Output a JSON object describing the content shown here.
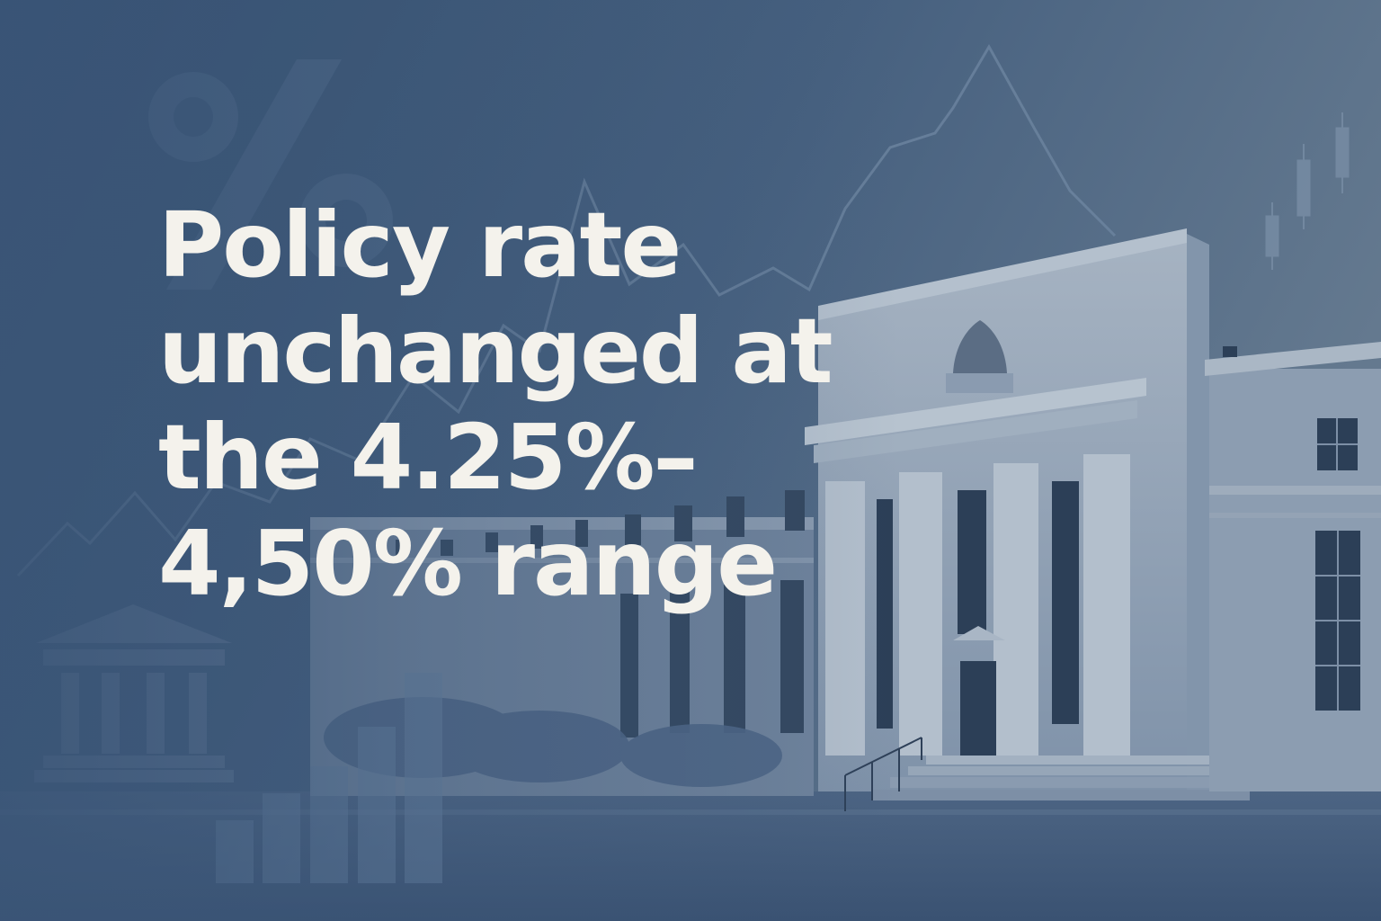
{
  "headline": {
    "lines": [
      "Policy rate",
      "unchanged at",
      "the 4.25%–",
      "4,50% range"
    ]
  },
  "background": {
    "subject": "central bank building with columns",
    "decor_glyph": "%",
    "colors": {
      "base": "#3a5577",
      "haze": "#8096ad",
      "stone": "#9aa9bb",
      "stone_dark": "#6d809a",
      "text": "#f4f2ec"
    }
  }
}
